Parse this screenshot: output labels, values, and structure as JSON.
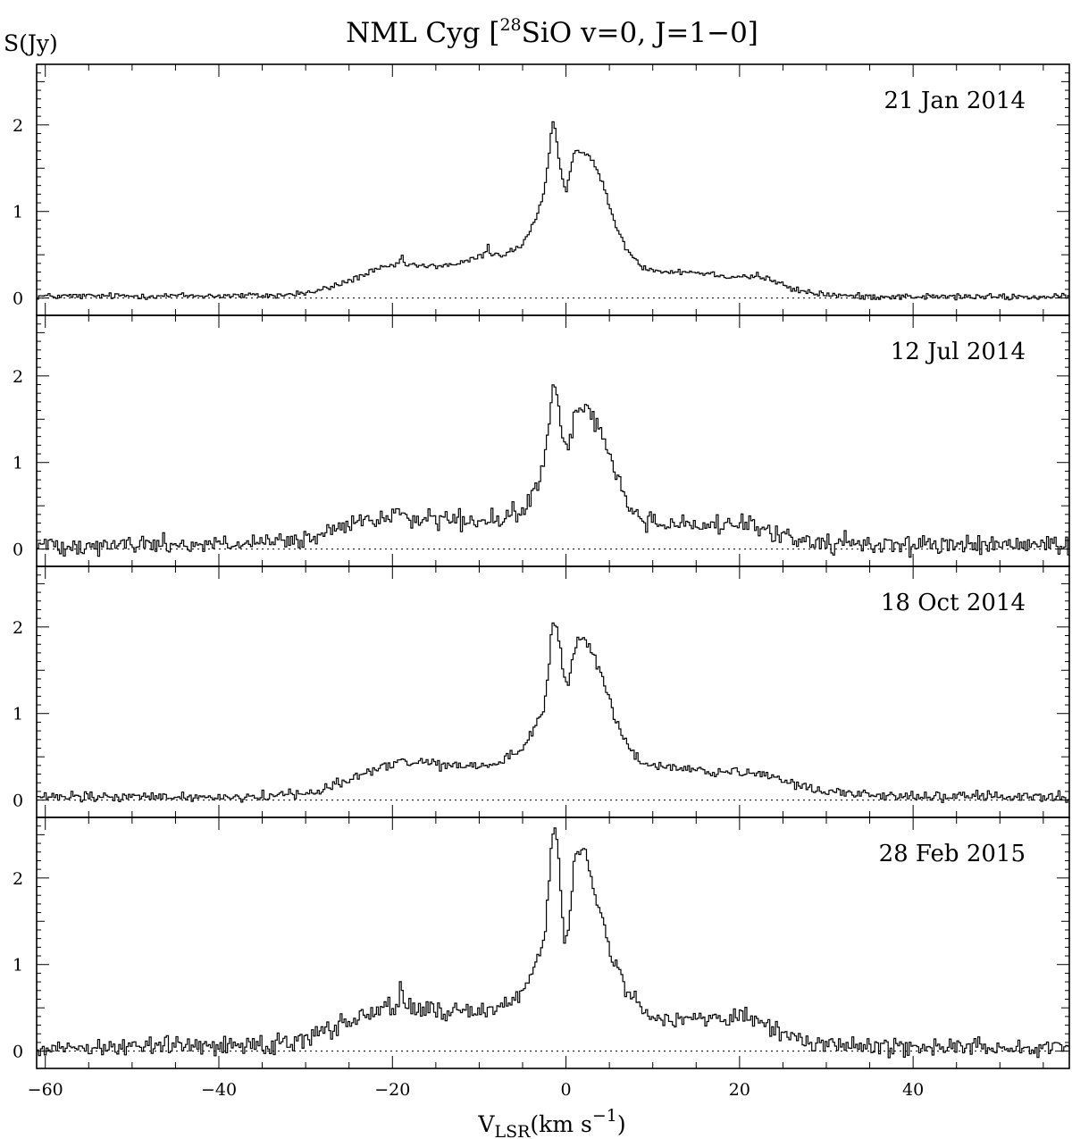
{
  "chart_data": {
    "type": "line",
    "title_prefix": "NML Cyg [",
    "title_sup": "28",
    "title_suffix": "SiO v=0, J=1−0]",
    "ylabel": "S(Jy)",
    "xlabel_main": "V",
    "xlabel_sub": "LSR",
    "xlabel_unit": "(km s",
    "xlabel_exp": "−1",
    "xlabel_close": ")",
    "xlim": [
      -61,
      58
    ],
    "ylim": [
      -0.2,
      2.7
    ],
    "x_ticks": [
      -60,
      -40,
      -20,
      0,
      20,
      40
    ],
    "y_ticks": [
      0,
      1,
      2
    ],
    "line_color": "#000000",
    "baseline_style": "dotted",
    "grid": false,
    "panels": [
      {
        "label": "21 Jan 2014",
        "noise": 0.018,
        "profile": [
          [
            -61,
            0.02
          ],
          [
            -33,
            0.03
          ],
          [
            -29,
            0.07
          ],
          [
            -26,
            0.16
          ],
          [
            -22,
            0.32
          ],
          [
            -19,
            0.4
          ],
          [
            -16,
            0.36
          ],
          [
            -12,
            0.4
          ],
          [
            -9,
            0.52
          ],
          [
            -7,
            0.5
          ],
          [
            -5,
            0.62
          ],
          [
            -3.5,
            0.9
          ],
          [
            -2.5,
            1.2
          ],
          [
            -2,
            1.6
          ],
          [
            -1.6,
            2.02
          ],
          [
            -1.2,
            1.95
          ],
          [
            -0.8,
            1.6
          ],
          [
            -0.4,
            1.4
          ],
          [
            0,
            1.25
          ],
          [
            0.3,
            1.35
          ],
          [
            0.8,
            1.65
          ],
          [
            1.5,
            1.72
          ],
          [
            2.5,
            1.65
          ],
          [
            3.5,
            1.5
          ],
          [
            4.5,
            1.25
          ],
          [
            5.5,
            0.9
          ],
          [
            6.5,
            0.65
          ],
          [
            7.5,
            0.5
          ],
          [
            9,
            0.35
          ],
          [
            12,
            0.3
          ],
          [
            15,
            0.3
          ],
          [
            19,
            0.25
          ],
          [
            22,
            0.25
          ],
          [
            24,
            0.2
          ],
          [
            26,
            0.1
          ],
          [
            29,
            0.05
          ],
          [
            33,
            0.02
          ],
          [
            58,
            0.01
          ]
        ],
        "spikes": [
          [
            -9,
            0.12
          ],
          [
            -19,
            0.05
          ],
          [
            13,
            0.05
          ],
          [
            22,
            0.04
          ]
        ]
      },
      {
        "label": "12 Jul 2014",
        "noise": 0.055,
        "profile": [
          [
            -61,
            0.05
          ],
          [
            -35,
            0.06
          ],
          [
            -30,
            0.1
          ],
          [
            -27,
            0.2
          ],
          [
            -24,
            0.3
          ],
          [
            -20,
            0.38
          ],
          [
            -16,
            0.35
          ],
          [
            -12,
            0.32
          ],
          [
            -9,
            0.3
          ],
          [
            -7,
            0.35
          ],
          [
            -5,
            0.45
          ],
          [
            -4,
            0.6
          ],
          [
            -3,
            0.8
          ],
          [
            -2.5,
            1.0
          ],
          [
            -2,
            1.4
          ],
          [
            -1.6,
            1.82
          ],
          [
            -1.1,
            1.75
          ],
          [
            -0.6,
            1.5
          ],
          [
            -0.2,
            1.2
          ],
          [
            0.3,
            1.25
          ],
          [
            1,
            1.55
          ],
          [
            1.8,
            1.62
          ],
          [
            2.8,
            1.6
          ],
          [
            3.8,
            1.4
          ],
          [
            4.8,
            1.15
          ],
          [
            5.8,
            0.85
          ],
          [
            7,
            0.55
          ],
          [
            8.5,
            0.35
          ],
          [
            11,
            0.3
          ],
          [
            15,
            0.28
          ],
          [
            20,
            0.28
          ],
          [
            24,
            0.18
          ],
          [
            27,
            0.1
          ],
          [
            32,
            0.06
          ],
          [
            58,
            0.04
          ]
        ],
        "spikes": [
          [
            -8.5,
            0.1
          ],
          [
            13.5,
            0.12
          ],
          [
            23,
            0.1
          ],
          [
            -19,
            0.06
          ]
        ]
      },
      {
        "label": "18 Oct 2014",
        "noise": 0.03,
        "profile": [
          [
            -61,
            0.03
          ],
          [
            -35,
            0.04
          ],
          [
            -29,
            0.1
          ],
          [
            -26,
            0.2
          ],
          [
            -22,
            0.35
          ],
          [
            -19,
            0.45
          ],
          [
            -16,
            0.42
          ],
          [
            -12,
            0.38
          ],
          [
            -9,
            0.4
          ],
          [
            -7,
            0.45
          ],
          [
            -5,
            0.6
          ],
          [
            -3.5,
            0.85
          ],
          [
            -2.5,
            1.1
          ],
          [
            -2,
            1.5
          ],
          [
            -1.6,
            2.08
          ],
          [
            -1.1,
            2.0
          ],
          [
            -0.6,
            1.7
          ],
          [
            -0.2,
            1.4
          ],
          [
            0.3,
            1.35
          ],
          [
            1,
            1.8
          ],
          [
            2,
            1.85
          ],
          [
            3,
            1.72
          ],
          [
            4,
            1.45
          ],
          [
            5,
            1.15
          ],
          [
            6,
            0.85
          ],
          [
            7,
            0.65
          ],
          [
            8.5,
            0.45
          ],
          [
            11,
            0.38
          ],
          [
            14,
            0.36
          ],
          [
            18,
            0.32
          ],
          [
            22,
            0.3
          ],
          [
            25,
            0.22
          ],
          [
            28,
            0.14
          ],
          [
            32,
            0.08
          ],
          [
            38,
            0.05
          ],
          [
            58,
            0.03
          ]
        ],
        "spikes": [
          [
            -7,
            0.1
          ],
          [
            -11,
            0.07
          ],
          [
            12,
            0.06
          ]
        ]
      },
      {
        "label": "28 Feb 2015",
        "noise": 0.055,
        "profile": [
          [
            -61,
            0.04
          ],
          [
            -35,
            0.08
          ],
          [
            -30,
            0.15
          ],
          [
            -26,
            0.3
          ],
          [
            -23,
            0.45
          ],
          [
            -19,
            0.52
          ],
          [
            -16,
            0.48
          ],
          [
            -12,
            0.45
          ],
          [
            -9,
            0.48
          ],
          [
            -7,
            0.55
          ],
          [
            -5,
            0.7
          ],
          [
            -3.5,
            0.95
          ],
          [
            -2.5,
            1.3
          ],
          [
            -2,
            1.8
          ],
          [
            -1.6,
            2.58
          ],
          [
            -1.1,
            2.45
          ],
          [
            -0.6,
            1.9
          ],
          [
            -0.2,
            1.3
          ],
          [
            0.3,
            1.4
          ],
          [
            1,
            2.25
          ],
          [
            1.8,
            2.35
          ],
          [
            2.6,
            2.2
          ],
          [
            3.5,
            1.75
          ],
          [
            4.5,
            1.35
          ],
          [
            5.5,
            1.05
          ],
          [
            6.5,
            0.8
          ],
          [
            8,
            0.55
          ],
          [
            10,
            0.4
          ],
          [
            14,
            0.38
          ],
          [
            18,
            0.38
          ],
          [
            22,
            0.35
          ],
          [
            25,
            0.2
          ],
          [
            28,
            0.1
          ],
          [
            33,
            0.06
          ],
          [
            58,
            0.04
          ]
        ],
        "spikes": [
          [
            -19,
            0.18
          ],
          [
            -26,
            0.08
          ]
        ]
      }
    ]
  }
}
